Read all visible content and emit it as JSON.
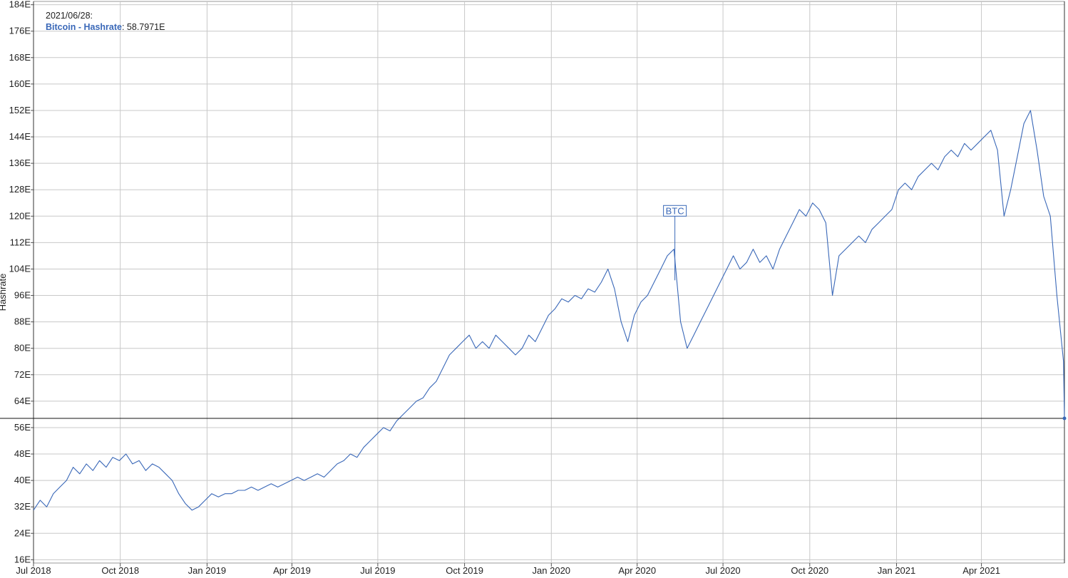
{
  "tooltip": {
    "date": "2021/06/28:",
    "series": "Bitcoin - Hashrate",
    "value": "58.7971E"
  },
  "marker_label": "BTC",
  "chart_data": {
    "type": "line",
    "title": "",
    "xlabel": "",
    "ylabel": "Hashrate",
    "ylim": [
      15,
      185
    ],
    "y_ticks": [
      "16E",
      "24E",
      "32E",
      "40E",
      "48E",
      "56E",
      "64E",
      "72E",
      "80E",
      "88E",
      "96E",
      "104E",
      "112E",
      "120E",
      "128E",
      "136E",
      "144E",
      "152E",
      "160E",
      "168E",
      "176E",
      "184E"
    ],
    "y_tick_values": [
      16,
      24,
      32,
      40,
      48,
      56,
      64,
      72,
      80,
      88,
      96,
      104,
      112,
      120,
      128,
      136,
      144,
      152,
      160,
      168,
      176,
      184
    ],
    "x_range": [
      "2018-07-01",
      "2021-06-28"
    ],
    "x_ticks": [
      {
        "label": "Jul 2018",
        "date": "2018-07-01"
      },
      {
        "label": "Oct 2018",
        "date": "2018-10-01"
      },
      {
        "label": "Jan 2019",
        "date": "2019-01-01"
      },
      {
        "label": "Apr 2019",
        "date": "2019-04-01"
      },
      {
        "label": "Jul 2019",
        "date": "2019-07-01"
      },
      {
        "label": "Oct 2019",
        "date": "2019-10-01"
      },
      {
        "label": "Jan 2020",
        "date": "2020-01-01"
      },
      {
        "label": "Apr 2020",
        "date": "2020-04-01"
      },
      {
        "label": "Jul 2020",
        "date": "2020-07-01"
      },
      {
        "label": "Oct 2020",
        "date": "2020-10-01"
      },
      {
        "label": "Jan 2021",
        "date": "2021-01-01"
      },
      {
        "label": "Apr 2021",
        "date": "2021-04-01"
      }
    ],
    "crosshair": {
      "date": "2021-06-28",
      "value": 58.7971
    },
    "flag": {
      "date": "2020-05-11",
      "value": 120,
      "label": "BTC"
    },
    "grid": true,
    "series": [
      {
        "name": "Bitcoin - Hashrate",
        "color": "#3a68b8",
        "points": [
          [
            "2018-07-01",
            31
          ],
          [
            "2018-07-08",
            34
          ],
          [
            "2018-07-15",
            32
          ],
          [
            "2018-07-22",
            36
          ],
          [
            "2018-07-29",
            38
          ],
          [
            "2018-08-05",
            40
          ],
          [
            "2018-08-12",
            44
          ],
          [
            "2018-08-19",
            42
          ],
          [
            "2018-08-26",
            45
          ],
          [
            "2018-09-02",
            43
          ],
          [
            "2018-09-09",
            46
          ],
          [
            "2018-09-16",
            44
          ],
          [
            "2018-09-23",
            47
          ],
          [
            "2018-09-30",
            46
          ],
          [
            "2018-10-07",
            48
          ],
          [
            "2018-10-14",
            45
          ],
          [
            "2018-10-21",
            46
          ],
          [
            "2018-10-28",
            43
          ],
          [
            "2018-11-04",
            45
          ],
          [
            "2018-11-11",
            44
          ],
          [
            "2018-11-18",
            42
          ],
          [
            "2018-11-25",
            40
          ],
          [
            "2018-12-02",
            36
          ],
          [
            "2018-12-09",
            33
          ],
          [
            "2018-12-16",
            31
          ],
          [
            "2018-12-23",
            32
          ],
          [
            "2018-12-30",
            34
          ],
          [
            "2019-01-06",
            36
          ],
          [
            "2019-01-13",
            35
          ],
          [
            "2019-01-20",
            36
          ],
          [
            "2019-01-27",
            36
          ],
          [
            "2019-02-03",
            37
          ],
          [
            "2019-02-10",
            37
          ],
          [
            "2019-02-17",
            38
          ],
          [
            "2019-02-24",
            37
          ],
          [
            "2019-03-03",
            38
          ],
          [
            "2019-03-10",
            39
          ],
          [
            "2019-03-17",
            38
          ],
          [
            "2019-03-24",
            39
          ],
          [
            "2019-03-31",
            40
          ],
          [
            "2019-04-07",
            41
          ],
          [
            "2019-04-14",
            40
          ],
          [
            "2019-04-21",
            41
          ],
          [
            "2019-04-28",
            42
          ],
          [
            "2019-05-05",
            41
          ],
          [
            "2019-05-12",
            43
          ],
          [
            "2019-05-19",
            45
          ],
          [
            "2019-05-26",
            46
          ],
          [
            "2019-06-02",
            48
          ],
          [
            "2019-06-09",
            47
          ],
          [
            "2019-06-16",
            50
          ],
          [
            "2019-06-23",
            52
          ],
          [
            "2019-06-30",
            54
          ],
          [
            "2019-07-07",
            56
          ],
          [
            "2019-07-14",
            55
          ],
          [
            "2019-07-21",
            58
          ],
          [
            "2019-07-28",
            60
          ],
          [
            "2019-08-04",
            62
          ],
          [
            "2019-08-11",
            64
          ],
          [
            "2019-08-18",
            65
          ],
          [
            "2019-08-25",
            68
          ],
          [
            "2019-09-01",
            70
          ],
          [
            "2019-09-08",
            74
          ],
          [
            "2019-09-15",
            78
          ],
          [
            "2019-09-22",
            80
          ],
          [
            "2019-09-29",
            82
          ],
          [
            "2019-10-06",
            84
          ],
          [
            "2019-10-13",
            80
          ],
          [
            "2019-10-20",
            82
          ],
          [
            "2019-10-27",
            80
          ],
          [
            "2019-11-03",
            84
          ],
          [
            "2019-11-10",
            82
          ],
          [
            "2019-11-17",
            80
          ],
          [
            "2019-11-24",
            78
          ],
          [
            "2019-12-01",
            80
          ],
          [
            "2019-12-08",
            84
          ],
          [
            "2019-12-15",
            82
          ],
          [
            "2019-12-22",
            86
          ],
          [
            "2019-12-29",
            90
          ],
          [
            "2020-01-05",
            92
          ],
          [
            "2020-01-12",
            95
          ],
          [
            "2020-01-19",
            94
          ],
          [
            "2020-01-26",
            96
          ],
          [
            "2020-02-02",
            95
          ],
          [
            "2020-02-09",
            98
          ],
          [
            "2020-02-16",
            97
          ],
          [
            "2020-02-23",
            100
          ],
          [
            "2020-03-01",
            104
          ],
          [
            "2020-03-08",
            98
          ],
          [
            "2020-03-15",
            88
          ],
          [
            "2020-03-22",
            82
          ],
          [
            "2020-03-29",
            90
          ],
          [
            "2020-04-05",
            94
          ],
          [
            "2020-04-12",
            96
          ],
          [
            "2020-04-19",
            100
          ],
          [
            "2020-04-26",
            104
          ],
          [
            "2020-05-03",
            108
          ],
          [
            "2020-05-10",
            110
          ],
          [
            "2020-05-17",
            88
          ],
          [
            "2020-05-24",
            80
          ],
          [
            "2020-05-31",
            84
          ],
          [
            "2020-06-07",
            88
          ],
          [
            "2020-06-14",
            92
          ],
          [
            "2020-06-21",
            96
          ],
          [
            "2020-06-28",
            100
          ],
          [
            "2020-07-05",
            104
          ],
          [
            "2020-07-12",
            108
          ],
          [
            "2020-07-19",
            104
          ],
          [
            "2020-07-26",
            106
          ],
          [
            "2020-08-02",
            110
          ],
          [
            "2020-08-09",
            106
          ],
          [
            "2020-08-16",
            108
          ],
          [
            "2020-08-23",
            104
          ],
          [
            "2020-08-30",
            110
          ],
          [
            "2020-09-06",
            114
          ],
          [
            "2020-09-13",
            118
          ],
          [
            "2020-09-20",
            122
          ],
          [
            "2020-09-27",
            120
          ],
          [
            "2020-10-04",
            124
          ],
          [
            "2020-10-11",
            122
          ],
          [
            "2020-10-18",
            118
          ],
          [
            "2020-10-25",
            96
          ],
          [
            "2020-11-01",
            108
          ],
          [
            "2020-11-08",
            110
          ],
          [
            "2020-11-15",
            112
          ],
          [
            "2020-11-22",
            114
          ],
          [
            "2020-11-29",
            112
          ],
          [
            "2020-12-06",
            116
          ],
          [
            "2020-12-13",
            118
          ],
          [
            "2020-12-20",
            120
          ],
          [
            "2020-12-27",
            122
          ],
          [
            "2021-01-03",
            128
          ],
          [
            "2021-01-10",
            130
          ],
          [
            "2021-01-17",
            128
          ],
          [
            "2021-01-24",
            132
          ],
          [
            "2021-01-31",
            134
          ],
          [
            "2021-02-07",
            136
          ],
          [
            "2021-02-14",
            134
          ],
          [
            "2021-02-21",
            138
          ],
          [
            "2021-02-28",
            140
          ],
          [
            "2021-03-07",
            138
          ],
          [
            "2021-03-14",
            142
          ],
          [
            "2021-03-21",
            140
          ],
          [
            "2021-03-28",
            142
          ],
          [
            "2021-04-04",
            144
          ],
          [
            "2021-04-11",
            146
          ],
          [
            "2021-04-18",
            140
          ],
          [
            "2021-04-25",
            120
          ],
          [
            "2021-05-02",
            128
          ],
          [
            "2021-05-09",
            138
          ],
          [
            "2021-05-16",
            148
          ],
          [
            "2021-05-23",
            152
          ],
          [
            "2021-05-30",
            140
          ],
          [
            "2021-06-06",
            126
          ],
          [
            "2021-06-13",
            120
          ],
          [
            "2021-06-20",
            96
          ],
          [
            "2021-06-27",
            76
          ],
          [
            "2021-06-28",
            58.7971
          ]
        ]
      }
    ]
  }
}
